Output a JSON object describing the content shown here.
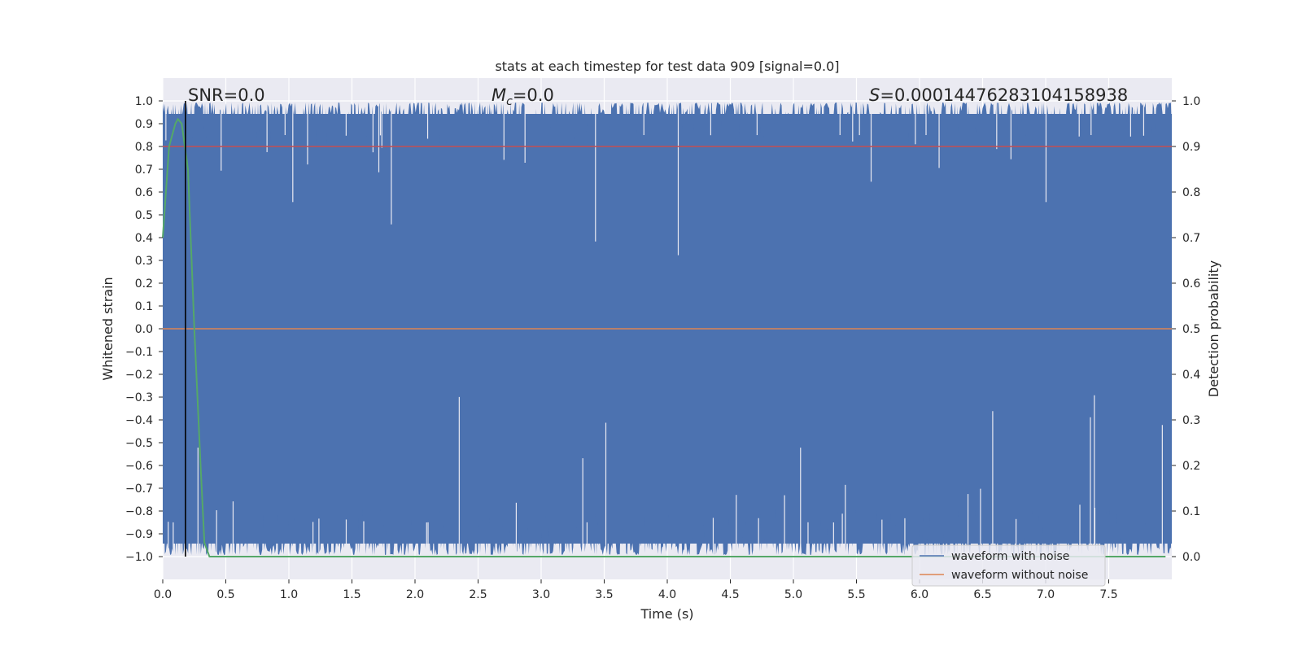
{
  "chart_data": {
    "type": "line",
    "title": "stats at each timestep for test data 909 [signal=0.0]",
    "xlabel": "Time (s)",
    "ylabel": "Whitened strain",
    "ylabel_right": "Detection probability",
    "xlim": [
      0.0,
      8.0
    ],
    "ylim": [
      -1.1,
      1.1
    ],
    "ylim_right": [
      -0.05,
      1.05
    ],
    "x_ticks": [
      "0.0",
      "0.5",
      "1.0",
      "1.5",
      "2.0",
      "2.5",
      "3.0",
      "3.5",
      "4.0",
      "4.5",
      "5.0",
      "5.5",
      "6.0",
      "6.5",
      "7.0",
      "7.5"
    ],
    "x_tick_values": [
      0.0,
      0.5,
      1.0,
      1.5,
      2.0,
      2.5,
      3.0,
      3.5,
      4.0,
      4.5,
      5.0,
      5.5,
      6.0,
      6.5,
      7.0,
      7.5
    ],
    "y_ticks": [
      "1.0",
      "0.9",
      "0.8",
      "0.7",
      "0.6",
      "0.5",
      "0.4",
      "0.3",
      "0.2",
      "0.1",
      "0.0",
      "−0.1",
      "−0.2",
      "−0.3",
      "−0.4",
      "−0.5",
      "−0.6",
      "−0.7",
      "−0.8",
      "−0.9",
      "−1.0"
    ],
    "y_tick_values": [
      1.0,
      0.9,
      0.8,
      0.7,
      0.6,
      0.5,
      0.4,
      0.3,
      0.2,
      0.1,
      0.0,
      -0.1,
      -0.2,
      -0.3,
      -0.4,
      -0.5,
      -0.6,
      -0.7,
      -0.8,
      -0.9,
      -1.0
    ],
    "y_ticks_right": [
      "1.0",
      "0.9",
      "0.8",
      "0.7",
      "0.6",
      "0.5",
      "0.4",
      "0.3",
      "0.2",
      "0.1",
      "0.0"
    ],
    "y_tick_values_right": [
      1.0,
      0.9,
      0.8,
      0.7,
      0.6,
      0.5,
      0.4,
      0.3,
      0.2,
      0.1,
      0.0
    ],
    "grid": true,
    "legend_placement": "lower-right",
    "annotations": {
      "snr": "SNR=0.0",
      "mc_symbol": "M",
      "mc_sub": "c",
      "mc_value": "=0.0",
      "s_symbol": "S",
      "s_value": "=0.00014476283104158938"
    },
    "marker_x": 0.18,
    "threshold_right": 0.9,
    "series": [
      {
        "name": "waveform with noise",
        "color": "#4c72b0",
        "kind": "noise",
        "lim": [
          -1.0,
          1.0
        ]
      },
      {
        "name": "waveform without noise",
        "color": "#dd8452",
        "kind": "flat",
        "value": 0.0
      }
    ],
    "threshold_color": "#c44e52",
    "probability": {
      "color": "#55a868",
      "x": [
        0.0,
        0.05,
        0.1,
        0.12,
        0.15,
        0.2,
        0.25,
        0.3,
        0.33,
        0.37,
        0.5,
        1.0,
        2.0,
        3.0,
        4.0,
        5.0,
        6.0,
        7.0,
        7.95
      ],
      "y": [
        0.7,
        0.9,
        0.95,
        0.96,
        0.95,
        0.85,
        0.5,
        0.2,
        0.03,
        0.0,
        0.0,
        0.0,
        0.0,
        0.0,
        0.0,
        0.0,
        0.0,
        0.0,
        0.0
      ]
    },
    "colors": {
      "axes_bg": "#eaeaf2",
      "grid": "#ffffff",
      "marker": "#000000"
    }
  }
}
